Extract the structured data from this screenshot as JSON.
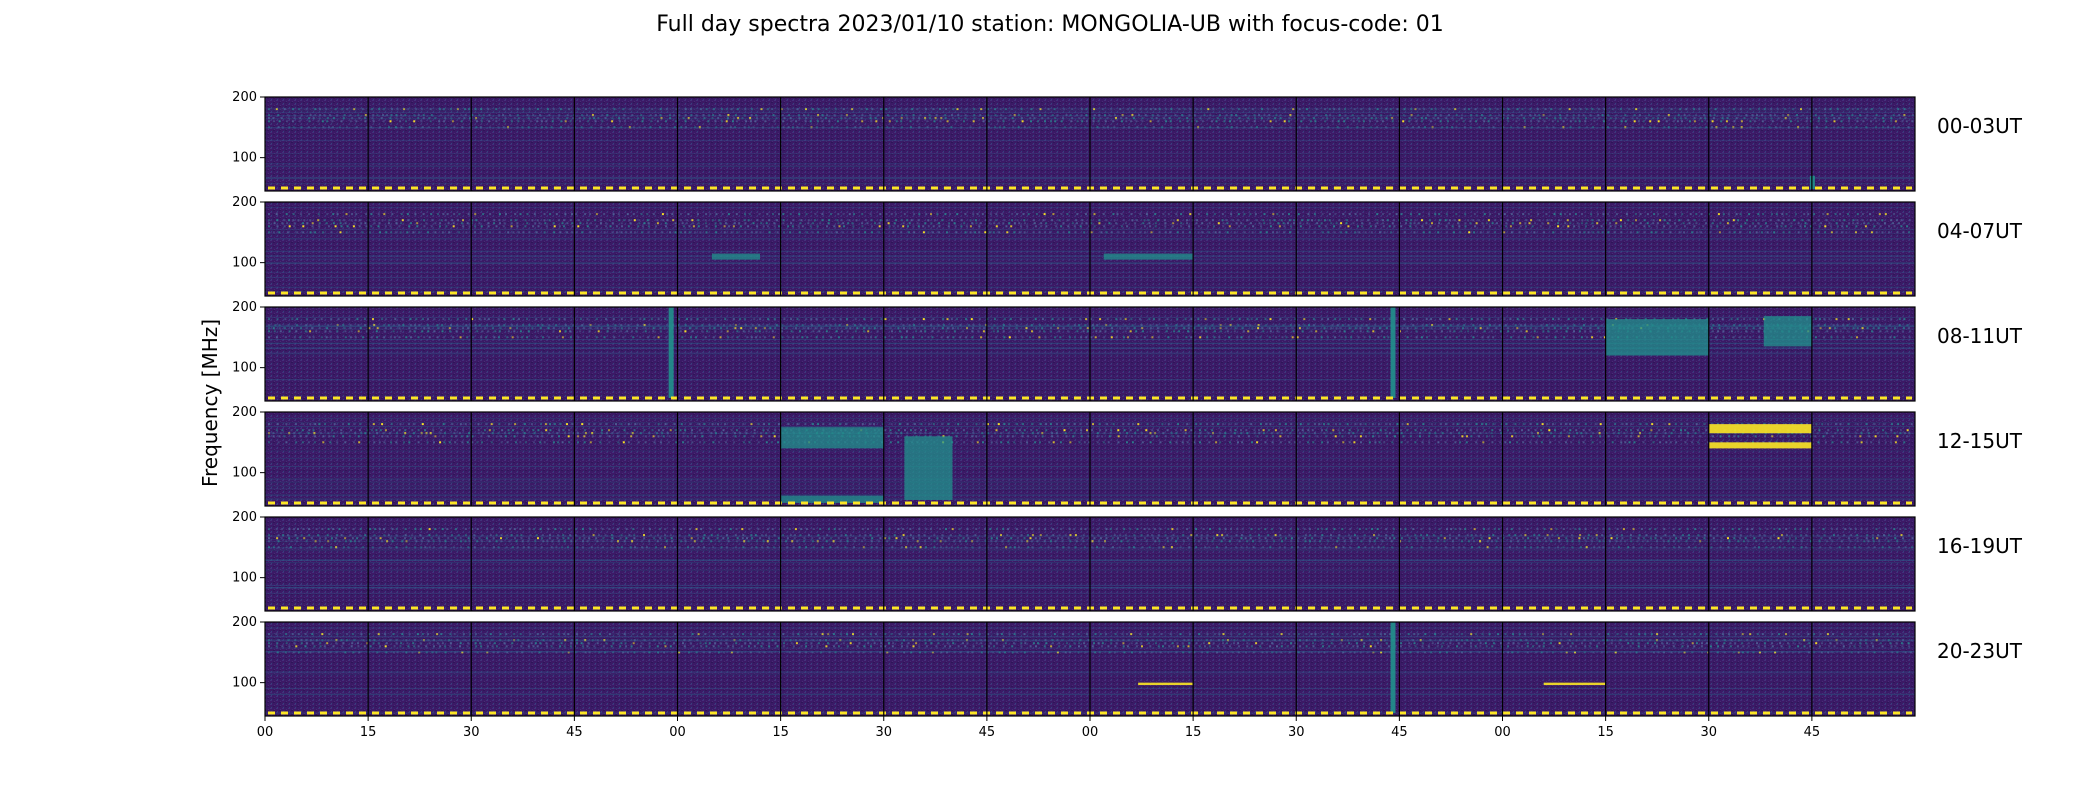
{
  "chart_data": {
    "type": "heatmap",
    "title": "Full day spectra 2023/01/10 station: MONGOLIA-UB with focus-code: 01",
    "ylabel": "Frequency [MHz]",
    "xlabel": "",
    "colormap": "viridis",
    "ylim": [
      45,
      200
    ],
    "y_ticks": [
      "200",
      "100"
    ],
    "x_ticks": [
      "00",
      "15",
      "30",
      "45",
      "00",
      "15",
      "30",
      "45",
      "00",
      "15",
      "30",
      "45",
      "00",
      "15",
      "30",
      "45"
    ],
    "x_tick_minutes": [
      0,
      15,
      30,
      45,
      60,
      75,
      90,
      105,
      120,
      135,
      150,
      165,
      180,
      195,
      210,
      225
    ],
    "x_range_minutes": [
      0,
      240
    ],
    "panel_minutes": 15,
    "rows": [
      {
        "label": "00-03UT",
        "features": [
          {
            "minute": 225,
            "f_low": 48,
            "f_high": 70,
            "kind": "burst"
          }
        ]
      },
      {
        "label": "04-07UT",
        "features": [
          {
            "minute_start": 65,
            "minute_end": 72,
            "f_low": 105,
            "f_high": 115,
            "kind": "band"
          },
          {
            "minute_start": 122,
            "minute_end": 135,
            "f_low": 105,
            "f_high": 115,
            "kind": "band"
          }
        ]
      },
      {
        "label": "08-11UT",
        "features": [
          {
            "minute": 59,
            "f_low": 50,
            "f_high": 200,
            "kind": "burst"
          },
          {
            "minute": 164,
            "f_low": 50,
            "f_high": 200,
            "kind": "burst"
          },
          {
            "minute_start": 195,
            "minute_end": 210,
            "f_low": 120,
            "f_high": 180,
            "kind": "band"
          },
          {
            "minute_start": 218,
            "minute_end": 225,
            "f_low": 135,
            "f_high": 185,
            "kind": "band"
          }
        ]
      },
      {
        "label": "12-15UT",
        "features": [
          {
            "minute_start": 75,
            "minute_end": 90,
            "f_low": 140,
            "f_high": 175,
            "kind": "band"
          },
          {
            "minute_start": 75,
            "minute_end": 90,
            "f_low": 50,
            "f_high": 62,
            "kind": "band"
          },
          {
            "minute_start": 93,
            "minute_end": 100,
            "f_low": 55,
            "f_high": 160,
            "kind": "band"
          },
          {
            "minute_start": 210,
            "minute_end": 225,
            "f_low": 165,
            "f_high": 180,
            "kind": "line"
          },
          {
            "minute_start": 210,
            "minute_end": 225,
            "f_low": 140,
            "f_high": 150,
            "kind": "line"
          }
        ]
      },
      {
        "label": "16-19UT",
        "features": []
      },
      {
        "label": "20-23UT",
        "features": [
          {
            "minute_start": 127,
            "minute_end": 135,
            "f_low": 96,
            "f_high": 100,
            "kind": "line"
          },
          {
            "minute": 164,
            "f_low": 50,
            "f_high": 200,
            "kind": "burst"
          },
          {
            "minute_start": 186,
            "minute_end": 195,
            "f_low": 96,
            "f_high": 100,
            "kind": "line"
          }
        ]
      }
    ],
    "colors": {
      "background": "#3b1a66",
      "low": "#440154",
      "mid": "#21918c",
      "high": "#fde725",
      "dash": "#fde725"
    }
  }
}
